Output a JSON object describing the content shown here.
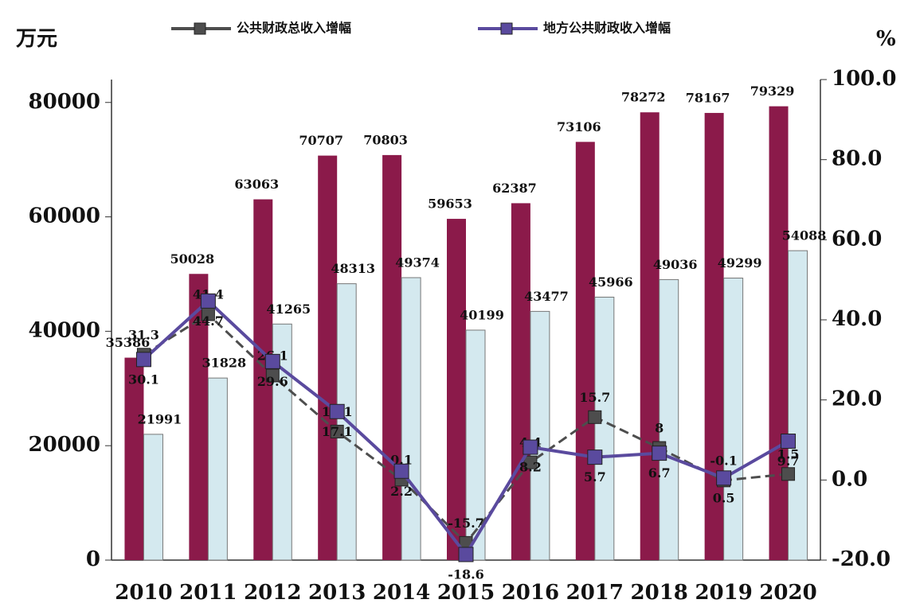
{
  "chart_data": {
    "type": "bar",
    "y_label": "万元",
    "y2_label": "%",
    "categories": [
      "2010",
      "2011",
      "2012",
      "2013",
      "2014",
      "2015",
      "2016",
      "2017",
      "2018",
      "2019",
      "2020"
    ],
    "series": [
      {
        "type": "bar",
        "color": "#8b1a4a",
        "values": [
          35386,
          50028,
          63063,
          70707,
          70803,
          59653,
          62387,
          73106,
          78272,
          78167,
          79329
        ]
      },
      {
        "type": "bar",
        "color": "#d4e9ef",
        "values": [
          21991,
          31828,
          41265,
          48313,
          49374,
          40199,
          43477,
          45966,
          49036,
          49299,
          54088
        ]
      },
      {
        "type": "line",
        "name": "公共财政总收入增幅",
        "color": "#4d4d4d",
        "axis": "y2",
        "values": [
          31.3,
          41.4,
          26.1,
          12.1,
          0.1,
          -15.7,
          4.4,
          15.7,
          8.0,
          -0.1,
          1.5
        ]
      },
      {
        "type": "line",
        "name": "地方公共财政收入增幅",
        "color": "#5a4a9e",
        "axis": "y2",
        "values": [
          30.1,
          44.7,
          29.6,
          17.1,
          2.2,
          -18.6,
          8.2,
          5.7,
          6.7,
          0.5,
          9.7
        ]
      }
    ],
    "ylim": [
      0,
      84000
    ],
    "yticks": [
      0,
      20000,
      40000,
      60000,
      80000
    ],
    "y2lim": [
      -20,
      100
    ],
    "y2ticks": [
      {
        "value": -20,
        "label": "-20.0"
      },
      {
        "value": 0,
        "label": "0.0"
      },
      {
        "value": 20,
        "label": "20.0"
      },
      {
        "value": 40,
        "label": "40.0"
      },
      {
        "value": 60,
        "label": "60.0"
      },
      {
        "value": 80,
        "label": "80.0"
      },
      {
        "value": 100,
        "label": "100.0"
      }
    ],
    "legend": "top"
  }
}
